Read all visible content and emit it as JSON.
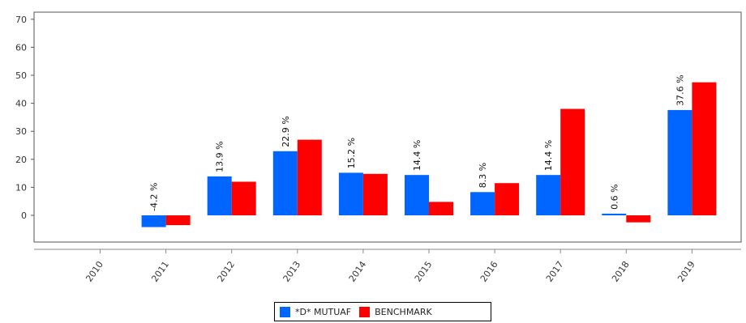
{
  "chart_data": {
    "type": "bar",
    "categories": [
      "2010",
      "2011",
      "2012",
      "2013",
      "2014",
      "2015",
      "2016",
      "2017",
      "2018",
      "2019"
    ],
    "series": [
      {
        "name": "*D* MUTUAF",
        "color": "#0066ff",
        "values": [
          null,
          -4.2,
          13.9,
          22.9,
          15.2,
          14.4,
          8.3,
          14.4,
          0.6,
          37.6
        ],
        "labels": [
          "",
          "-4.2 %",
          "13.9 %",
          "22.9 %",
          "15.2 %",
          "14.4 %",
          "8.3 %",
          "14.4 %",
          "0.6 %",
          "37.6 %"
        ]
      },
      {
        "name": "BENCHMARK",
        "color": "#ff0000",
        "values": [
          null,
          -3.5,
          12,
          27,
          14.8,
          4.8,
          11.5,
          38,
          -2.5,
          47.5
        ]
      }
    ],
    "y_ticks": [
      "0",
      "10",
      "20",
      "30",
      "40",
      "50",
      "60",
      "70"
    ],
    "ylim": [
      -9,
      72
    ],
    "legend_position": "bottom-center",
    "grid": false
  }
}
